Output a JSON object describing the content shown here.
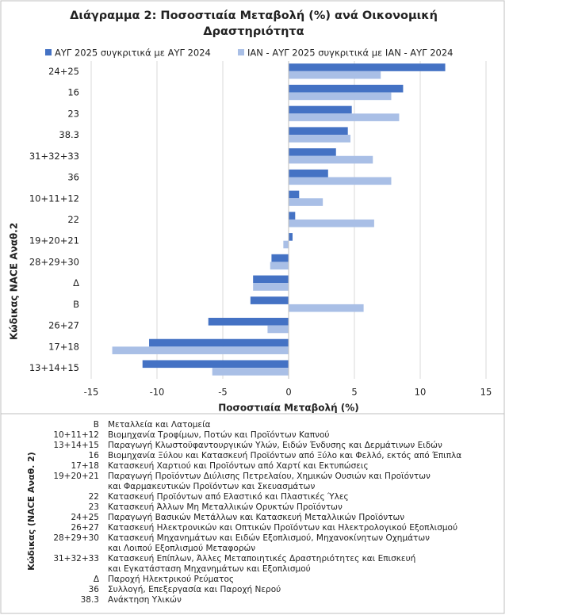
{
  "chart_data": {
    "type": "hbar",
    "title": [
      "Διάγραμμα 2: Ποσοστιαία Μεταβολή (%) ανά Οικονομική",
      "Δραστηριότητα"
    ],
    "x_label": "Ποσοστιαία Μεταβολή (%)",
    "y_label": "Κώδικας NACE Αναθ.2",
    "categories": [
      "24+25",
      "16",
      "23",
      "38.3",
      "31+32+33",
      "36",
      "10+11+12",
      "22",
      "19+20+21",
      "28+29+30",
      "Δ",
      "Β",
      "26+27",
      "17+18",
      "13+14+15"
    ],
    "series": [
      {
        "name": "ΑΥΓ 2025 συγκριτικά με ΑΥΓ 2024",
        "color": "#4472c4",
        "values": [
          11.9,
          8.7,
          4.8,
          4.5,
          3.6,
          3.0,
          0.8,
          0.5,
          0.3,
          -1.3,
          -2.7,
          -2.9,
          -6.1,
          -10.6,
          -11.1
        ]
      },
      {
        "name": "ΙΑΝ - ΑΥΓ 2025 συγκριτικά με ΙΑΝ - ΑΥΓ 2024",
        "color": "#a9bfe6",
        "values": [
          7.0,
          7.8,
          8.4,
          4.7,
          6.4,
          7.8,
          2.6,
          6.5,
          -0.4,
          -1.4,
          -2.7,
          5.7,
          -1.6,
          -13.4,
          -5.8
        ]
      }
    ],
    "xlim": [
      -15,
      15
    ],
    "xticks": [
      -15,
      -10,
      -5,
      0,
      5,
      10,
      15
    ],
    "grid": true
  },
  "code_table": {
    "label": "Κώδικας (NACE Αναθ. 2)",
    "rows": [
      {
        "code": "Β",
        "description": [
          "Μεταλλεία και Λατομεία"
        ]
      },
      {
        "code": "10+11+12",
        "description": [
          "Βιομηχανία Τροφίμων, Ποτών και Προϊόντων Καπνού"
        ]
      },
      {
        "code": "13+14+15",
        "description": [
          "Παραγωγή Κλωστοϋφαντουργικών Υλών, Ειδών Ένδυσης και Δερμάτινων Ειδών"
        ]
      },
      {
        "code": "16",
        "description": [
          "Βιομηχανία Ξύλου και Κατασκευή Προϊόντων από Ξύλο και Φελλό, εκτός από Έπιπλα"
        ]
      },
      {
        "code": "17+18",
        "description": [
          "Κατασκευή Χαρτιού και Προϊόντων από Χαρτί και Εκτυπώσεις"
        ]
      },
      {
        "code": "19+20+21",
        "description": [
          "Παραγωγή Προϊόντων Διύλισης Πετρελαίου, Χημικών Ουσιών και Προϊόντων",
          "και Φαρμακευτικών Προϊόντων και Σκευασμάτων"
        ]
      },
      {
        "code": "22",
        "description": [
          "Κατασκευή Προϊόντων από Ελαστικό και Πλαστικές Ύλες"
        ]
      },
      {
        "code": "23",
        "description": [
          "Κατασκευή Άλλων Μη Μεταλλικών Ορυκτών Προϊόντων"
        ]
      },
      {
        "code": "24+25",
        "description": [
          "Παραγωγή Βασικών Μετάλλων και Κατασκευή Μεταλλικών Προϊόντων"
        ]
      },
      {
        "code": "26+27",
        "description": [
          "Κατασκευή Ηλεκτρονικών και Οπτικών Προϊόντων και Ηλεκτρολογικού Εξοπλισμού"
        ]
      },
      {
        "code": "28+29+30",
        "description": [
          "Κατασκευή Μηχανημάτων και Ειδών Εξοπλισμού, Μηχανοκίνητων Οχημάτων",
          "και Λοιπού Εξοπλισμού Μεταφορών"
        ]
      },
      {
        "code": "31+32+33",
        "description": [
          "Κατασκευή Επίπλων, Άλλες Μεταποιητικές Δραστηριότητες και Επισκευή",
          "και Εγκατάσταση Μηχανημάτων και Εξοπλισμού"
        ]
      },
      {
        "code": "Δ",
        "description": [
          "Παροχή Ηλεκτρικού Ρεύματος"
        ]
      },
      {
        "code": "36",
        "description": [
          "Συλλογή, Επεξεργασία και Παροχή Νερού"
        ]
      },
      {
        "code": "38.3",
        "description": [
          "Ανάκτηση Υλικών"
        ]
      }
    ]
  }
}
